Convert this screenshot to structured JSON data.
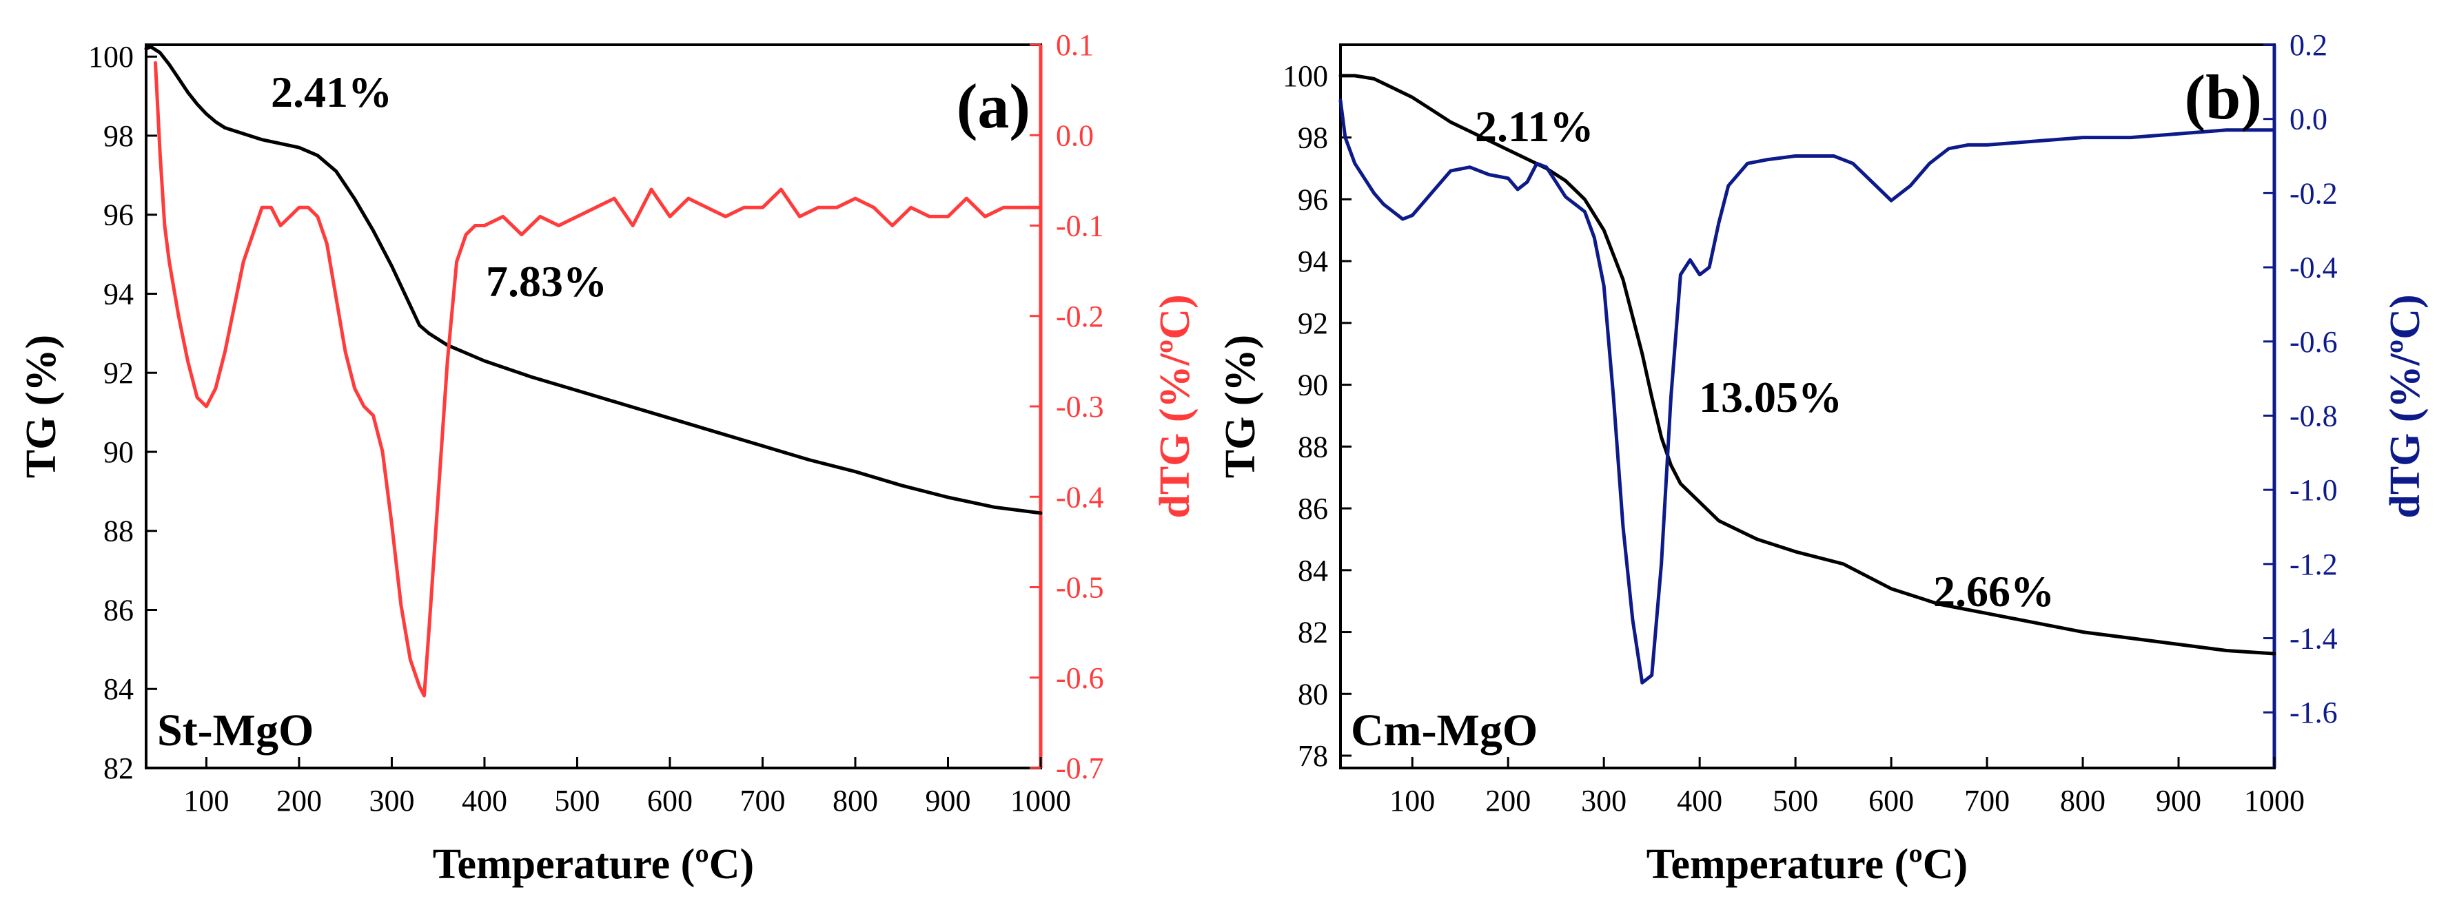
{
  "chart_data": [
    {
      "type": "line",
      "panel_label": "(a)",
      "sample_label": "St-MgO",
      "xlabel": "Temperature (ºC)",
      "ylabel_left": "TG (%)",
      "ylabel_right": "dTG (%/ºC)",
      "xlim": [
        35,
        1000
      ],
      "ylim_left": [
        82,
        100.3
      ],
      "ylim_right": [
        -0.7,
        0.1
      ],
      "xticks": [
        "100",
        "200",
        "300",
        "400",
        "500",
        "600",
        "700",
        "800",
        "900",
        "1000"
      ],
      "yticks_left": [
        "82",
        "84",
        "86",
        "88",
        "90",
        "92",
        "94",
        "96",
        "98",
        "100"
      ],
      "yticks_right": [
        "0.1",
        "0.0",
        "-0.1",
        "-0.2",
        "-0.3",
        "-0.4",
        "-0.5",
        "-0.6",
        "-0.7"
      ],
      "annotations": [
        "2.41%",
        "7.83%"
      ],
      "series": [
        {
          "name": "TG",
          "axis": "left",
          "color": "#000000",
          "x": [
            35,
            40,
            50,
            60,
            70,
            80,
            90,
            100,
            110,
            120,
            140,
            160,
            180,
            200,
            220,
            240,
            260,
            280,
            300,
            320,
            330,
            340,
            350,
            360,
            380,
            400,
            450,
            500,
            550,
            600,
            650,
            700,
            750,
            800,
            850,
            900,
            950,
            1000
          ],
          "y": [
            100.2,
            100.25,
            100.1,
            99.8,
            99.45,
            99.1,
            98.8,
            98.55,
            98.35,
            98.2,
            98.05,
            97.9,
            97.8,
            97.7,
            97.5,
            97.1,
            96.4,
            95.6,
            94.7,
            93.7,
            93.2,
            93.0,
            92.85,
            92.7,
            92.5,
            92.3,
            91.9,
            91.55,
            91.2,
            90.85,
            90.5,
            90.15,
            89.8,
            89.5,
            89.15,
            88.85,
            88.6,
            88.45
          ]
        },
        {
          "name": "dTG",
          "axis": "right",
          "color": "#ff3b3b",
          "x": [
            45,
            50,
            55,
            60,
            70,
            80,
            90,
            100,
            110,
            120,
            130,
            140,
            150,
            160,
            170,
            180,
            190,
            200,
            210,
            220,
            230,
            240,
            250,
            260,
            270,
            280,
            290,
            300,
            310,
            320,
            330,
            335,
            340,
            350,
            360,
            370,
            380,
            390,
            400,
            420,
            440,
            460,
            480,
            500,
            520,
            540,
            560,
            580,
            600,
            620,
            640,
            660,
            680,
            700,
            720,
            740,
            760,
            780,
            800,
            820,
            840,
            860,
            880,
            900,
            920,
            940,
            960,
            980,
            1000
          ],
          "y": [
            0.08,
            -0.02,
            -0.1,
            -0.14,
            -0.2,
            -0.25,
            -0.29,
            -0.3,
            -0.28,
            -0.24,
            -0.19,
            -0.14,
            -0.11,
            -0.08,
            -0.08,
            -0.1,
            -0.09,
            -0.08,
            -0.08,
            -0.09,
            -0.12,
            -0.18,
            -0.24,
            -0.28,
            -0.3,
            -0.31,
            -0.35,
            -0.43,
            -0.52,
            -0.58,
            -0.61,
            -0.62,
            -0.55,
            -0.4,
            -0.25,
            -0.14,
            -0.11,
            -0.1,
            -0.1,
            -0.09,
            -0.11,
            -0.09,
            -0.1,
            -0.09,
            -0.08,
            -0.07,
            -0.1,
            -0.06,
            -0.09,
            -0.07,
            -0.08,
            -0.09,
            -0.08,
            -0.08,
            -0.06,
            -0.09,
            -0.08,
            -0.08,
            -0.07,
            -0.08,
            -0.1,
            -0.08,
            -0.09,
            -0.09,
            -0.07,
            -0.09,
            -0.08,
            -0.08,
            -0.08
          ]
        }
      ]
    },
    {
      "type": "line",
      "panel_label": "(b)",
      "sample_label": "Cm-MgO",
      "xlabel": "Temperature (ºC)",
      "ylabel_left": "TG (%)",
      "ylabel_right": "dTG (%/ºC)",
      "xlim": [
        25,
        1000
      ],
      "ylim_left": [
        77.6,
        101
      ],
      "ylim_right": [
        -1.75,
        0.2
      ],
      "xticks": [
        "100",
        "200",
        "300",
        "400",
        "500",
        "600",
        "700",
        "800",
        "900",
        "1000"
      ],
      "yticks_left": [
        "78",
        "80",
        "82",
        "84",
        "86",
        "88",
        "90",
        "92",
        "94",
        "96",
        "98",
        "100"
      ],
      "yticks_right": [
        "0.2",
        "0.0",
        "-0.2",
        "-0.4",
        "-0.6",
        "-0.8",
        "-1.0",
        "-1.2",
        "-1.4",
        "-1.6"
      ],
      "annotations": [
        "2.11%",
        "13.05%",
        "2.66%"
      ],
      "series": [
        {
          "name": "TG",
          "axis": "left",
          "color": "#000000",
          "x": [
            25,
            40,
            60,
            80,
            100,
            120,
            140,
            160,
            180,
            200,
            220,
            240,
            260,
            280,
            300,
            320,
            340,
            350,
            360,
            370,
            380,
            400,
            420,
            440,
            460,
            480,
            500,
            550,
            600,
            650,
            700,
            750,
            800,
            850,
            900,
            950,
            1000
          ],
          "y": [
            100,
            100,
            99.9,
            99.6,
            99.3,
            98.9,
            98.5,
            98.2,
            97.9,
            97.6,
            97.3,
            97.0,
            96.6,
            96.0,
            95.0,
            93.4,
            91.0,
            89.6,
            88.3,
            87.4,
            86.8,
            86.2,
            85.6,
            85.3,
            85.0,
            84.8,
            84.6,
            84.2,
            83.4,
            82.9,
            82.6,
            82.3,
            82.0,
            81.8,
            81.6,
            81.4,
            81.3
          ]
        },
        {
          "name": "dTG",
          "axis": "right",
          "color": "#0d1a8a",
          "x": [
            25,
            30,
            40,
            50,
            60,
            70,
            80,
            90,
            100,
            120,
            140,
            160,
            180,
            200,
            210,
            220,
            230,
            240,
            250,
            260,
            270,
            280,
            290,
            300,
            310,
            320,
            330,
            340,
            350,
            360,
            370,
            380,
            390,
            400,
            410,
            420,
            430,
            450,
            470,
            500,
            520,
            540,
            560,
            580,
            600,
            620,
            640,
            660,
            680,
            700,
            750,
            800,
            850,
            900,
            950,
            1000
          ],
          "y": [
            0.05,
            -0.05,
            -0.12,
            -0.16,
            -0.2,
            -0.23,
            -0.25,
            -0.27,
            -0.26,
            -0.2,
            -0.14,
            -0.13,
            -0.15,
            -0.16,
            -0.19,
            -0.17,
            -0.12,
            -0.13,
            -0.17,
            -0.21,
            -0.23,
            -0.25,
            -0.32,
            -0.45,
            -0.75,
            -1.1,
            -1.35,
            -1.52,
            -1.5,
            -1.2,
            -0.75,
            -0.42,
            -0.38,
            -0.42,
            -0.4,
            -0.28,
            -0.18,
            -0.12,
            -0.11,
            -0.1,
            -0.1,
            -0.1,
            -0.12,
            -0.17,
            -0.22,
            -0.18,
            -0.12,
            -0.08,
            -0.07,
            -0.07,
            -0.06,
            -0.05,
            -0.05,
            -0.04,
            -0.03,
            -0.03
          ]
        }
      ]
    }
  ]
}
